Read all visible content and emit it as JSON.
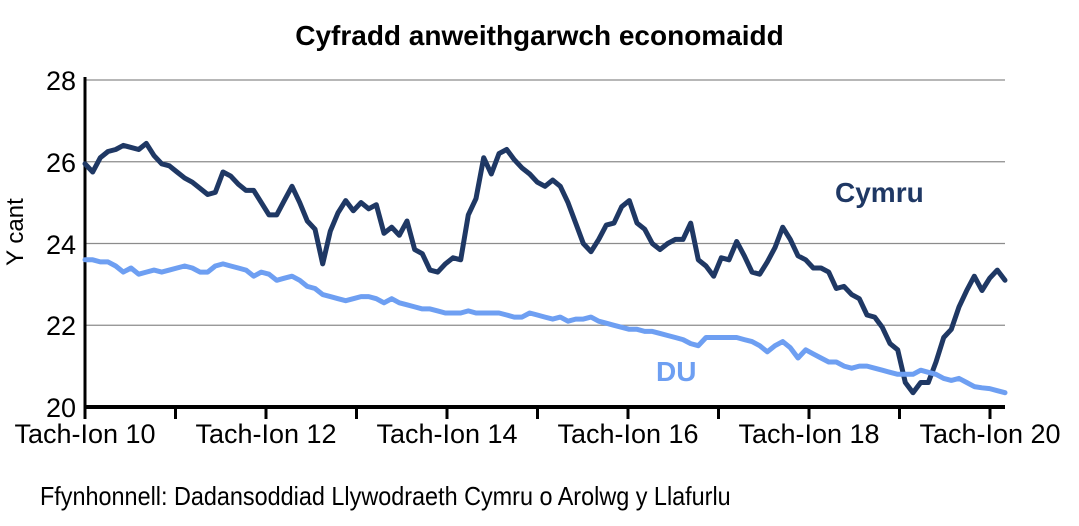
{
  "page": {
    "background": "#FFFFFF"
  },
  "chart_data": {
    "type": "line",
    "title": "Cyfradd anweithgarwch economaidd",
    "ylabel": "Y cant",
    "xlabel": "",
    "ylim": [
      20,
      28
    ],
    "y_ticks": [
      20,
      22,
      24,
      26,
      28
    ],
    "x_tick_labels": [
      "Tach-Ion 10",
      "Tach-Ion 12",
      "Tach-Ion 14",
      "Tach-Ion 16",
      "Tach-Ion 18",
      "Tach-Ion 20"
    ],
    "x_minor_ticks": "one tick per year, 11 ticks, labels every second tick",
    "grid": "horizontal gridlines at y ticks",
    "legend_position": "inline labels next to lines",
    "grid_color": "#8C8C8C",
    "axis_color": "#000000",
    "series": [
      {
        "name": "Cymru",
        "color": "#1F3864",
        "values": [
          25.95,
          25.75,
          26.1,
          26.25,
          26.3,
          26.4,
          26.35,
          26.3,
          26.45,
          26.15,
          25.95,
          25.9,
          25.75,
          25.6,
          25.5,
          25.35,
          25.2,
          25.25,
          25.75,
          25.65,
          25.45,
          25.3,
          25.3,
          25.0,
          24.7,
          24.7,
          25.05,
          25.4,
          25.0,
          24.55,
          24.35,
          23.5,
          24.3,
          24.75,
          25.05,
          24.8,
          25.0,
          24.85,
          24.95,
          24.25,
          24.4,
          24.2,
          24.55,
          23.85,
          23.75,
          23.35,
          23.3,
          23.5,
          23.65,
          23.6,
          24.7,
          25.1,
          26.1,
          25.7,
          26.2,
          26.3,
          26.05,
          25.85,
          25.7,
          25.5,
          25.4,
          25.55,
          25.4,
          25.0,
          24.5,
          24.0,
          23.8,
          24.1,
          24.45,
          24.5,
          24.9,
          25.05,
          24.5,
          24.35,
          24.0,
          23.85,
          24.0,
          24.1,
          24.1,
          24.5,
          23.6,
          23.45,
          23.2,
          23.65,
          23.6,
          24.05,
          23.7,
          23.3,
          23.25,
          23.55,
          23.9,
          24.4,
          24.1,
          23.7,
          23.6,
          23.4,
          23.4,
          23.3,
          22.9,
          22.95,
          22.75,
          22.65,
          22.25,
          22.2,
          21.95,
          21.55,
          21.4,
          20.6,
          20.35,
          20.6,
          20.6,
          21.1,
          21.7,
          21.9,
          22.45,
          22.85,
          23.2,
          22.85,
          23.15,
          23.35,
          23.1
        ]
      },
      {
        "name": "DU",
        "color": "#6E9FF2",
        "values": [
          23.6,
          23.6,
          23.55,
          23.55,
          23.45,
          23.3,
          23.4,
          23.25,
          23.3,
          23.35,
          23.3,
          23.35,
          23.4,
          23.45,
          23.4,
          23.3,
          23.3,
          23.45,
          23.5,
          23.45,
          23.4,
          23.35,
          23.2,
          23.3,
          23.25,
          23.1,
          23.15,
          23.2,
          23.1,
          22.95,
          22.9,
          22.75,
          22.7,
          22.65,
          22.6,
          22.65,
          22.7,
          22.7,
          22.65,
          22.55,
          22.65,
          22.55,
          22.5,
          22.45,
          22.4,
          22.4,
          22.35,
          22.3,
          22.3,
          22.3,
          22.35,
          22.3,
          22.3,
          22.3,
          22.3,
          22.25,
          22.2,
          22.2,
          22.3,
          22.25,
          22.2,
          22.15,
          22.2,
          22.1,
          22.15,
          22.15,
          22.2,
          22.1,
          22.05,
          22.0,
          21.95,
          21.9,
          21.9,
          21.85,
          21.85,
          21.8,
          21.75,
          21.7,
          21.65,
          21.55,
          21.5,
          21.7,
          21.7,
          21.7,
          21.7,
          21.7,
          21.65,
          21.6,
          21.5,
          21.35,
          21.5,
          21.6,
          21.45,
          21.2,
          21.4,
          21.3,
          21.2,
          21.1,
          21.1,
          21.0,
          20.95,
          21.0,
          21.0,
          20.95,
          20.9,
          20.85,
          20.8,
          20.8,
          20.8,
          20.9,
          20.85,
          20.8,
          20.7,
          20.65,
          20.7,
          20.6,
          20.5,
          20.47,
          20.45,
          20.4,
          20.35
        ]
      }
    ],
    "source": "Ffynhonnell: Dadansoddiad Llywodraeth Cymru o Arolwg y Llafurlu"
  }
}
